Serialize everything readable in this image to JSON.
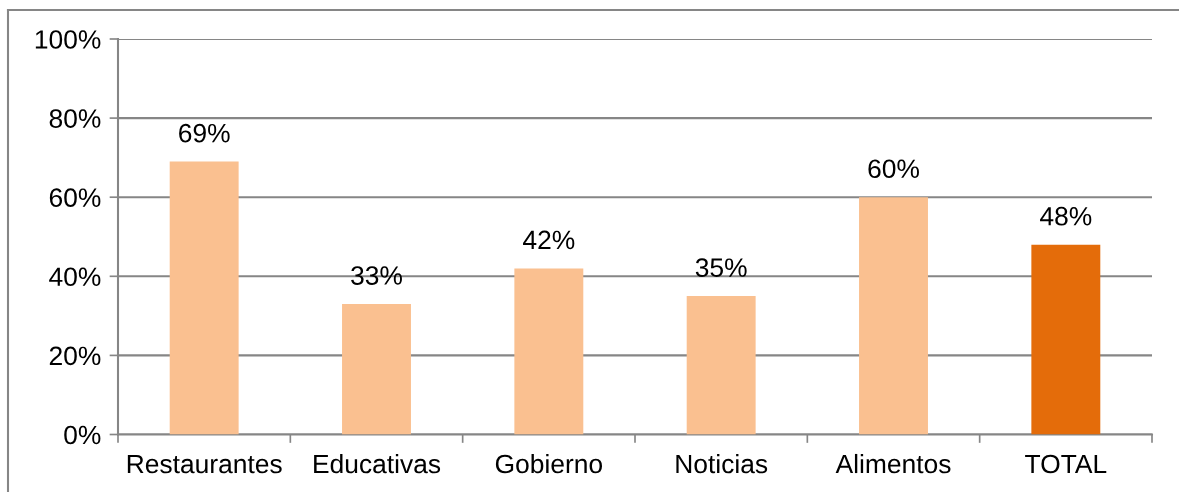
{
  "chart_data": {
    "type": "bar",
    "categories": [
      "Restaurantes",
      "Educativas",
      "Gobierno",
      "Noticias",
      "Alimentos",
      "TOTAL"
    ],
    "values": [
      69,
      33,
      42,
      35,
      60,
      48
    ],
    "colors": [
      "#fac090",
      "#fac090",
      "#fac090",
      "#fac090",
      "#fac090",
      "#e46c0a"
    ],
    "value_labels": [
      "69%",
      "33%",
      "42%",
      "35%",
      "60%",
      "48%"
    ],
    "ylim": [
      0,
      100
    ],
    "yticks": [
      {
        "value": 0,
        "label": "0%"
      },
      {
        "value": 20,
        "label": "20%"
      },
      {
        "value": 40,
        "label": "40%"
      },
      {
        "value": 60,
        "label": "60%"
      },
      {
        "value": 80,
        "label": "80%"
      },
      {
        "value": 100,
        "label": "100%"
      }
    ],
    "grid": "y"
  }
}
